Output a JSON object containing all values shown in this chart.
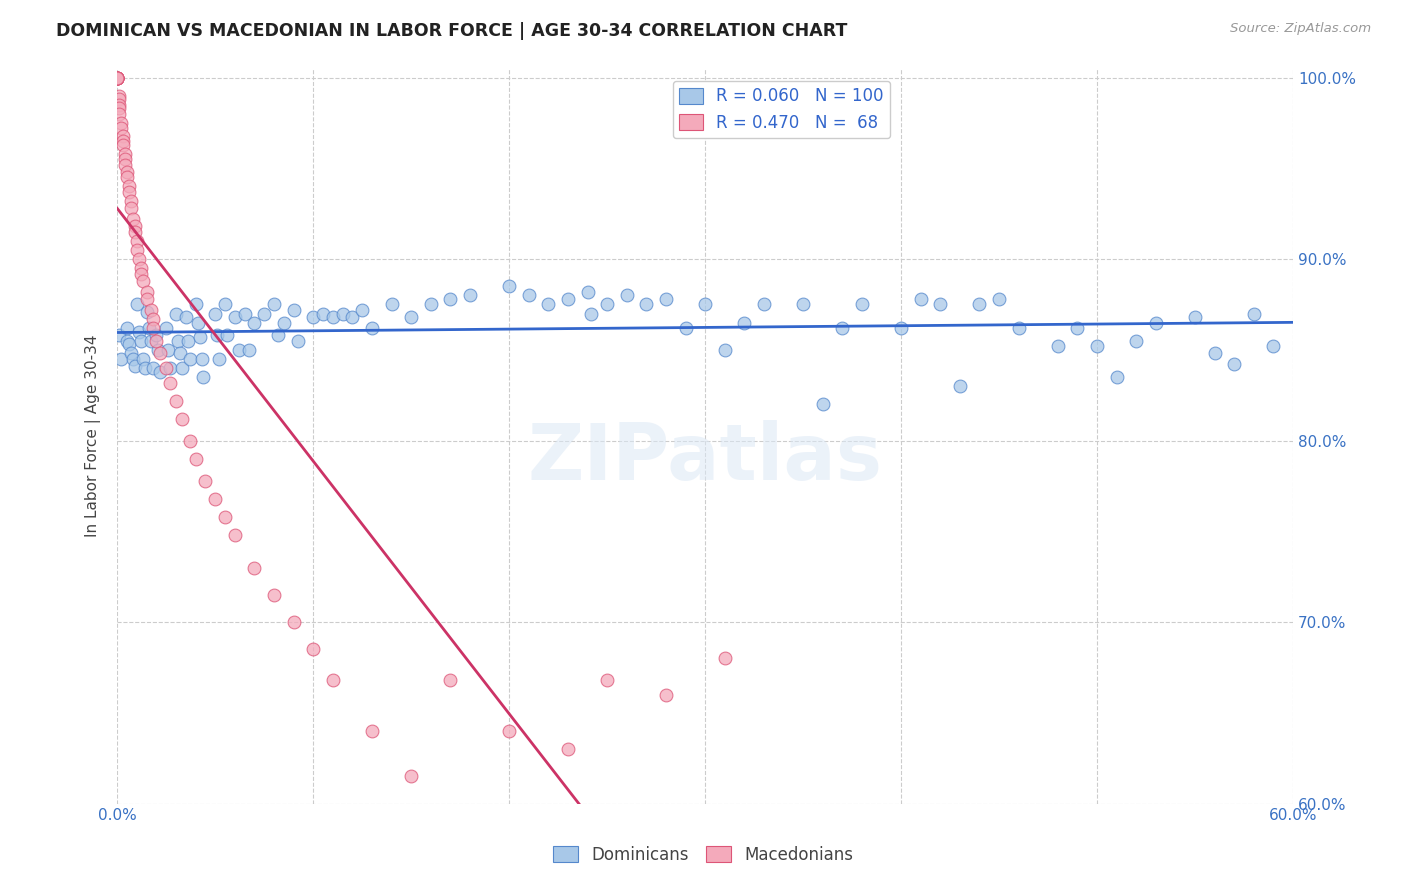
{
  "title": "DOMINICAN VS MACEDONIAN IN LABOR FORCE | AGE 30-34 CORRELATION CHART",
  "source": "Source: ZipAtlas.com",
  "ylabel": "In Labor Force | Age 30-34",
  "xlim": [
    0.0,
    0.6
  ],
  "ylim": [
    0.6,
    1.005
  ],
  "xtick_positions": [
    0.0,
    0.1,
    0.2,
    0.3,
    0.4,
    0.5,
    0.6
  ],
  "xtick_labels": [
    "0.0%",
    "",
    "",
    "",
    "",
    "",
    "60.0%"
  ],
  "ytick_positions": [
    0.6,
    0.7,
    0.8,
    0.9,
    1.0
  ],
  "ytick_labels": [
    "60.0%",
    "70.0%",
    "80.0%",
    "90.0%",
    "100.0%"
  ],
  "dominican_R": 0.06,
  "dominican_N": 100,
  "macedonian_R": 0.47,
  "macedonian_N": 68,
  "blue_scatter_color": "#a8c8e8",
  "blue_edge_color": "#5588cc",
  "pink_scatter_color": "#f4aabb",
  "pink_edge_color": "#dd5577",
  "blue_line_color": "#3366cc",
  "pink_line_color": "#cc3366",
  "watermark": "ZIPatlas",
  "background_color": "#ffffff",
  "dominican_x": [
    0.001,
    0.002,
    0.005,
    0.005,
    0.006,
    0.007,
    0.008,
    0.009,
    0.01,
    0.011,
    0.012,
    0.013,
    0.014,
    0.015,
    0.016,
    0.017,
    0.018,
    0.02,
    0.021,
    0.022,
    0.025,
    0.026,
    0.027,
    0.03,
    0.031,
    0.032,
    0.033,
    0.035,
    0.036,
    0.037,
    0.04,
    0.041,
    0.042,
    0.043,
    0.044,
    0.05,
    0.051,
    0.052,
    0.055,
    0.056,
    0.06,
    0.062,
    0.065,
    0.067,
    0.07,
    0.075,
    0.08,
    0.082,
    0.085,
    0.09,
    0.092,
    0.1,
    0.105,
    0.11,
    0.115,
    0.12,
    0.125,
    0.13,
    0.14,
    0.15,
    0.16,
    0.17,
    0.18,
    0.2,
    0.21,
    0.22,
    0.23,
    0.24,
    0.242,
    0.25,
    0.26,
    0.27,
    0.28,
    0.29,
    0.3,
    0.31,
    0.32,
    0.33,
    0.35,
    0.36,
    0.37,
    0.38,
    0.4,
    0.41,
    0.42,
    0.43,
    0.44,
    0.45,
    0.46,
    0.48,
    0.49,
    0.5,
    0.51,
    0.52,
    0.53,
    0.55,
    0.56,
    0.57,
    0.58,
    0.59
  ],
  "dominican_y": [
    0.858,
    0.845,
    0.862,
    0.855,
    0.853,
    0.848,
    0.845,
    0.841,
    0.875,
    0.86,
    0.855,
    0.845,
    0.84,
    0.871,
    0.862,
    0.855,
    0.84,
    0.858,
    0.85,
    0.838,
    0.862,
    0.85,
    0.84,
    0.87,
    0.855,
    0.848,
    0.84,
    0.868,
    0.855,
    0.845,
    0.875,
    0.865,
    0.857,
    0.845,
    0.835,
    0.87,
    0.858,
    0.845,
    0.875,
    0.858,
    0.868,
    0.85,
    0.87,
    0.85,
    0.865,
    0.87,
    0.875,
    0.858,
    0.865,
    0.872,
    0.855,
    0.868,
    0.87,
    0.868,
    0.87,
    0.868,
    0.872,
    0.862,
    0.875,
    0.868,
    0.875,
    0.878,
    0.88,
    0.885,
    0.88,
    0.875,
    0.878,
    0.882,
    0.87,
    0.875,
    0.88,
    0.875,
    0.878,
    0.862,
    0.875,
    0.85,
    0.865,
    0.875,
    0.875,
    0.82,
    0.862,
    0.875,
    0.862,
    0.878,
    0.875,
    0.83,
    0.875,
    0.878,
    0.862,
    0.852,
    0.862,
    0.852,
    0.835,
    0.855,
    0.865,
    0.868,
    0.848,
    0.842,
    0.87,
    0.852
  ],
  "macedonian_x": [
    0.0,
    0.0,
    0.0,
    0.0,
    0.0,
    0.0,
    0.0,
    0.0,
    0.0,
    0.0,
    0.001,
    0.001,
    0.001,
    0.001,
    0.001,
    0.002,
    0.002,
    0.003,
    0.003,
    0.003,
    0.004,
    0.004,
    0.004,
    0.005,
    0.005,
    0.006,
    0.006,
    0.007,
    0.007,
    0.008,
    0.009,
    0.009,
    0.01,
    0.01,
    0.011,
    0.012,
    0.012,
    0.013,
    0.015,
    0.015,
    0.017,
    0.018,
    0.018,
    0.02,
    0.022,
    0.025,
    0.027,
    0.03,
    0.033,
    0.037,
    0.04,
    0.045,
    0.05,
    0.055,
    0.06,
    0.07,
    0.08,
    0.09,
    0.1,
    0.11,
    0.13,
    0.15,
    0.17,
    0.2,
    0.23,
    0.25,
    0.28,
    0.31
  ],
  "macedonian_y": [
    1.0,
    1.0,
    1.0,
    1.0,
    1.0,
    1.0,
    1.0,
    1.0,
    1.0,
    1.0,
    0.99,
    0.988,
    0.985,
    0.983,
    0.98,
    0.975,
    0.972,
    0.968,
    0.965,
    0.963,
    0.958,
    0.955,
    0.952,
    0.948,
    0.945,
    0.94,
    0.937,
    0.932,
    0.928,
    0.922,
    0.918,
    0.915,
    0.91,
    0.905,
    0.9,
    0.895,
    0.892,
    0.888,
    0.882,
    0.878,
    0.872,
    0.867,
    0.862,
    0.855,
    0.848,
    0.84,
    0.832,
    0.822,
    0.812,
    0.8,
    0.79,
    0.778,
    0.768,
    0.758,
    0.748,
    0.73,
    0.715,
    0.7,
    0.685,
    0.668,
    0.64,
    0.615,
    0.668,
    0.64,
    0.63,
    0.668,
    0.66,
    0.68
  ]
}
